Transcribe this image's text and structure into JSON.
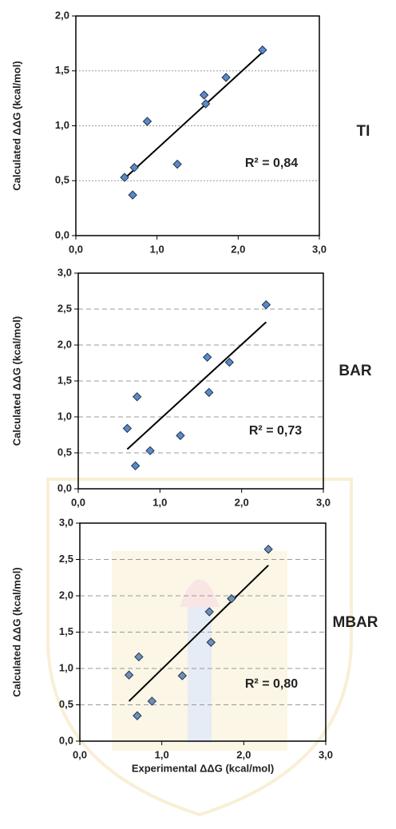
{
  "chart_data": [
    {
      "type": "scatter",
      "panel_label": "TI",
      "y_label": "Calculated ΔΔG (kcal/mol)",
      "annotation": "R² = 0,84",
      "x": [
        0.6,
        0.7,
        0.72,
        0.88,
        1.25,
        1.58,
        1.6,
        1.85,
        2.3
      ],
      "values": [
        0.53,
        0.37,
        0.62,
        1.04,
        0.65,
        1.28,
        1.2,
        1.44,
        1.69
      ],
      "trendline": {
        "x": [
          0.6,
          2.3
        ],
        "y": [
          0.52,
          1.67
        ]
      },
      "color": "#5b8ac8",
      "grid": true,
      "xlim": [
        0,
        3
      ],
      "ylim": [
        0,
        2
      ],
      "xticks": [
        {
          "value": 0,
          "label": "0,0"
        },
        {
          "value": 1,
          "label": "1,0"
        },
        {
          "value": 2,
          "label": "2,0"
        },
        {
          "value": 3,
          "label": "3,0"
        }
      ],
      "yticks": [
        {
          "value": 0,
          "label": "0,0"
        },
        {
          "value": 0.5,
          "label": "0,5"
        },
        {
          "value": 1,
          "label": "1,0"
        },
        {
          "value": 1.5,
          "label": "1,5"
        },
        {
          "value": 2,
          "label": "2,0"
        }
      ]
    },
    {
      "type": "scatter",
      "panel_label": "BAR",
      "y_label": "Calculated ΔΔG (kcal/mol)",
      "annotation": "R² = 0,73",
      "x": [
        0.6,
        0.7,
        0.72,
        0.88,
        1.25,
        1.58,
        1.6,
        1.85,
        2.3
      ],
      "values": [
        0.84,
        0.32,
        1.28,
        0.53,
        0.74,
        1.83,
        1.34,
        1.76,
        2.56
      ],
      "trendline": {
        "x": [
          0.6,
          2.3
        ],
        "y": [
          0.55,
          2.32
        ]
      },
      "color": "#5b8ac8",
      "grid": true,
      "xlim": [
        0,
        3
      ],
      "ylim": [
        0,
        3
      ],
      "xticks": [
        {
          "value": 0,
          "label": "0,0"
        },
        {
          "value": 1,
          "label": "1,0"
        },
        {
          "value": 2,
          "label": "2,0"
        },
        {
          "value": 3,
          "label": "3,0"
        }
      ],
      "yticks": [
        {
          "value": 0,
          "label": "0,0"
        },
        {
          "value": 0.5,
          "label": "0,5"
        },
        {
          "value": 1,
          "label": "1,0"
        },
        {
          "value": 1.5,
          "label": "1,5"
        },
        {
          "value": 2,
          "label": "2,0"
        },
        {
          "value": 2.5,
          "label": "2,5"
        },
        {
          "value": 3,
          "label": "3,0"
        }
      ]
    },
    {
      "type": "scatter",
      "panel_label": "MBAR",
      "y_label": "Calculated ΔΔG (kcal/mol)",
      "annotation": "R² = 0,80",
      "x_label": "Experimental ΔΔG (kcal/mol)",
      "x": [
        0.6,
        0.7,
        0.72,
        0.88,
        1.25,
        1.58,
        1.6,
        1.85,
        2.3
      ],
      "values": [
        0.91,
        0.35,
        1.16,
        0.55,
        0.9,
        1.78,
        1.36,
        1.96,
        2.64
      ],
      "trendline": {
        "x": [
          0.6,
          2.3
        ],
        "y": [
          0.55,
          2.42
        ]
      },
      "color": "#6f8fb8",
      "grid": true,
      "xlim": [
        0,
        3
      ],
      "ylim": [
        0,
        3
      ],
      "xticks": [
        {
          "value": 0,
          "label": "0,0"
        },
        {
          "value": 1,
          "label": "1,0"
        },
        {
          "value": 2,
          "label": "2,0"
        },
        {
          "value": 3,
          "label": "3,0"
        }
      ],
      "yticks": [
        {
          "value": 0,
          "label": "0,0"
        },
        {
          "value": 0.5,
          "label": "0,5"
        },
        {
          "value": 1,
          "label": "1,0"
        },
        {
          "value": 1.5,
          "label": "1,5"
        },
        {
          "value": 2,
          "label": "2,0"
        },
        {
          "value": 2.5,
          "label": "2,5"
        },
        {
          "value": 3,
          "label": "3,0"
        }
      ]
    }
  ]
}
